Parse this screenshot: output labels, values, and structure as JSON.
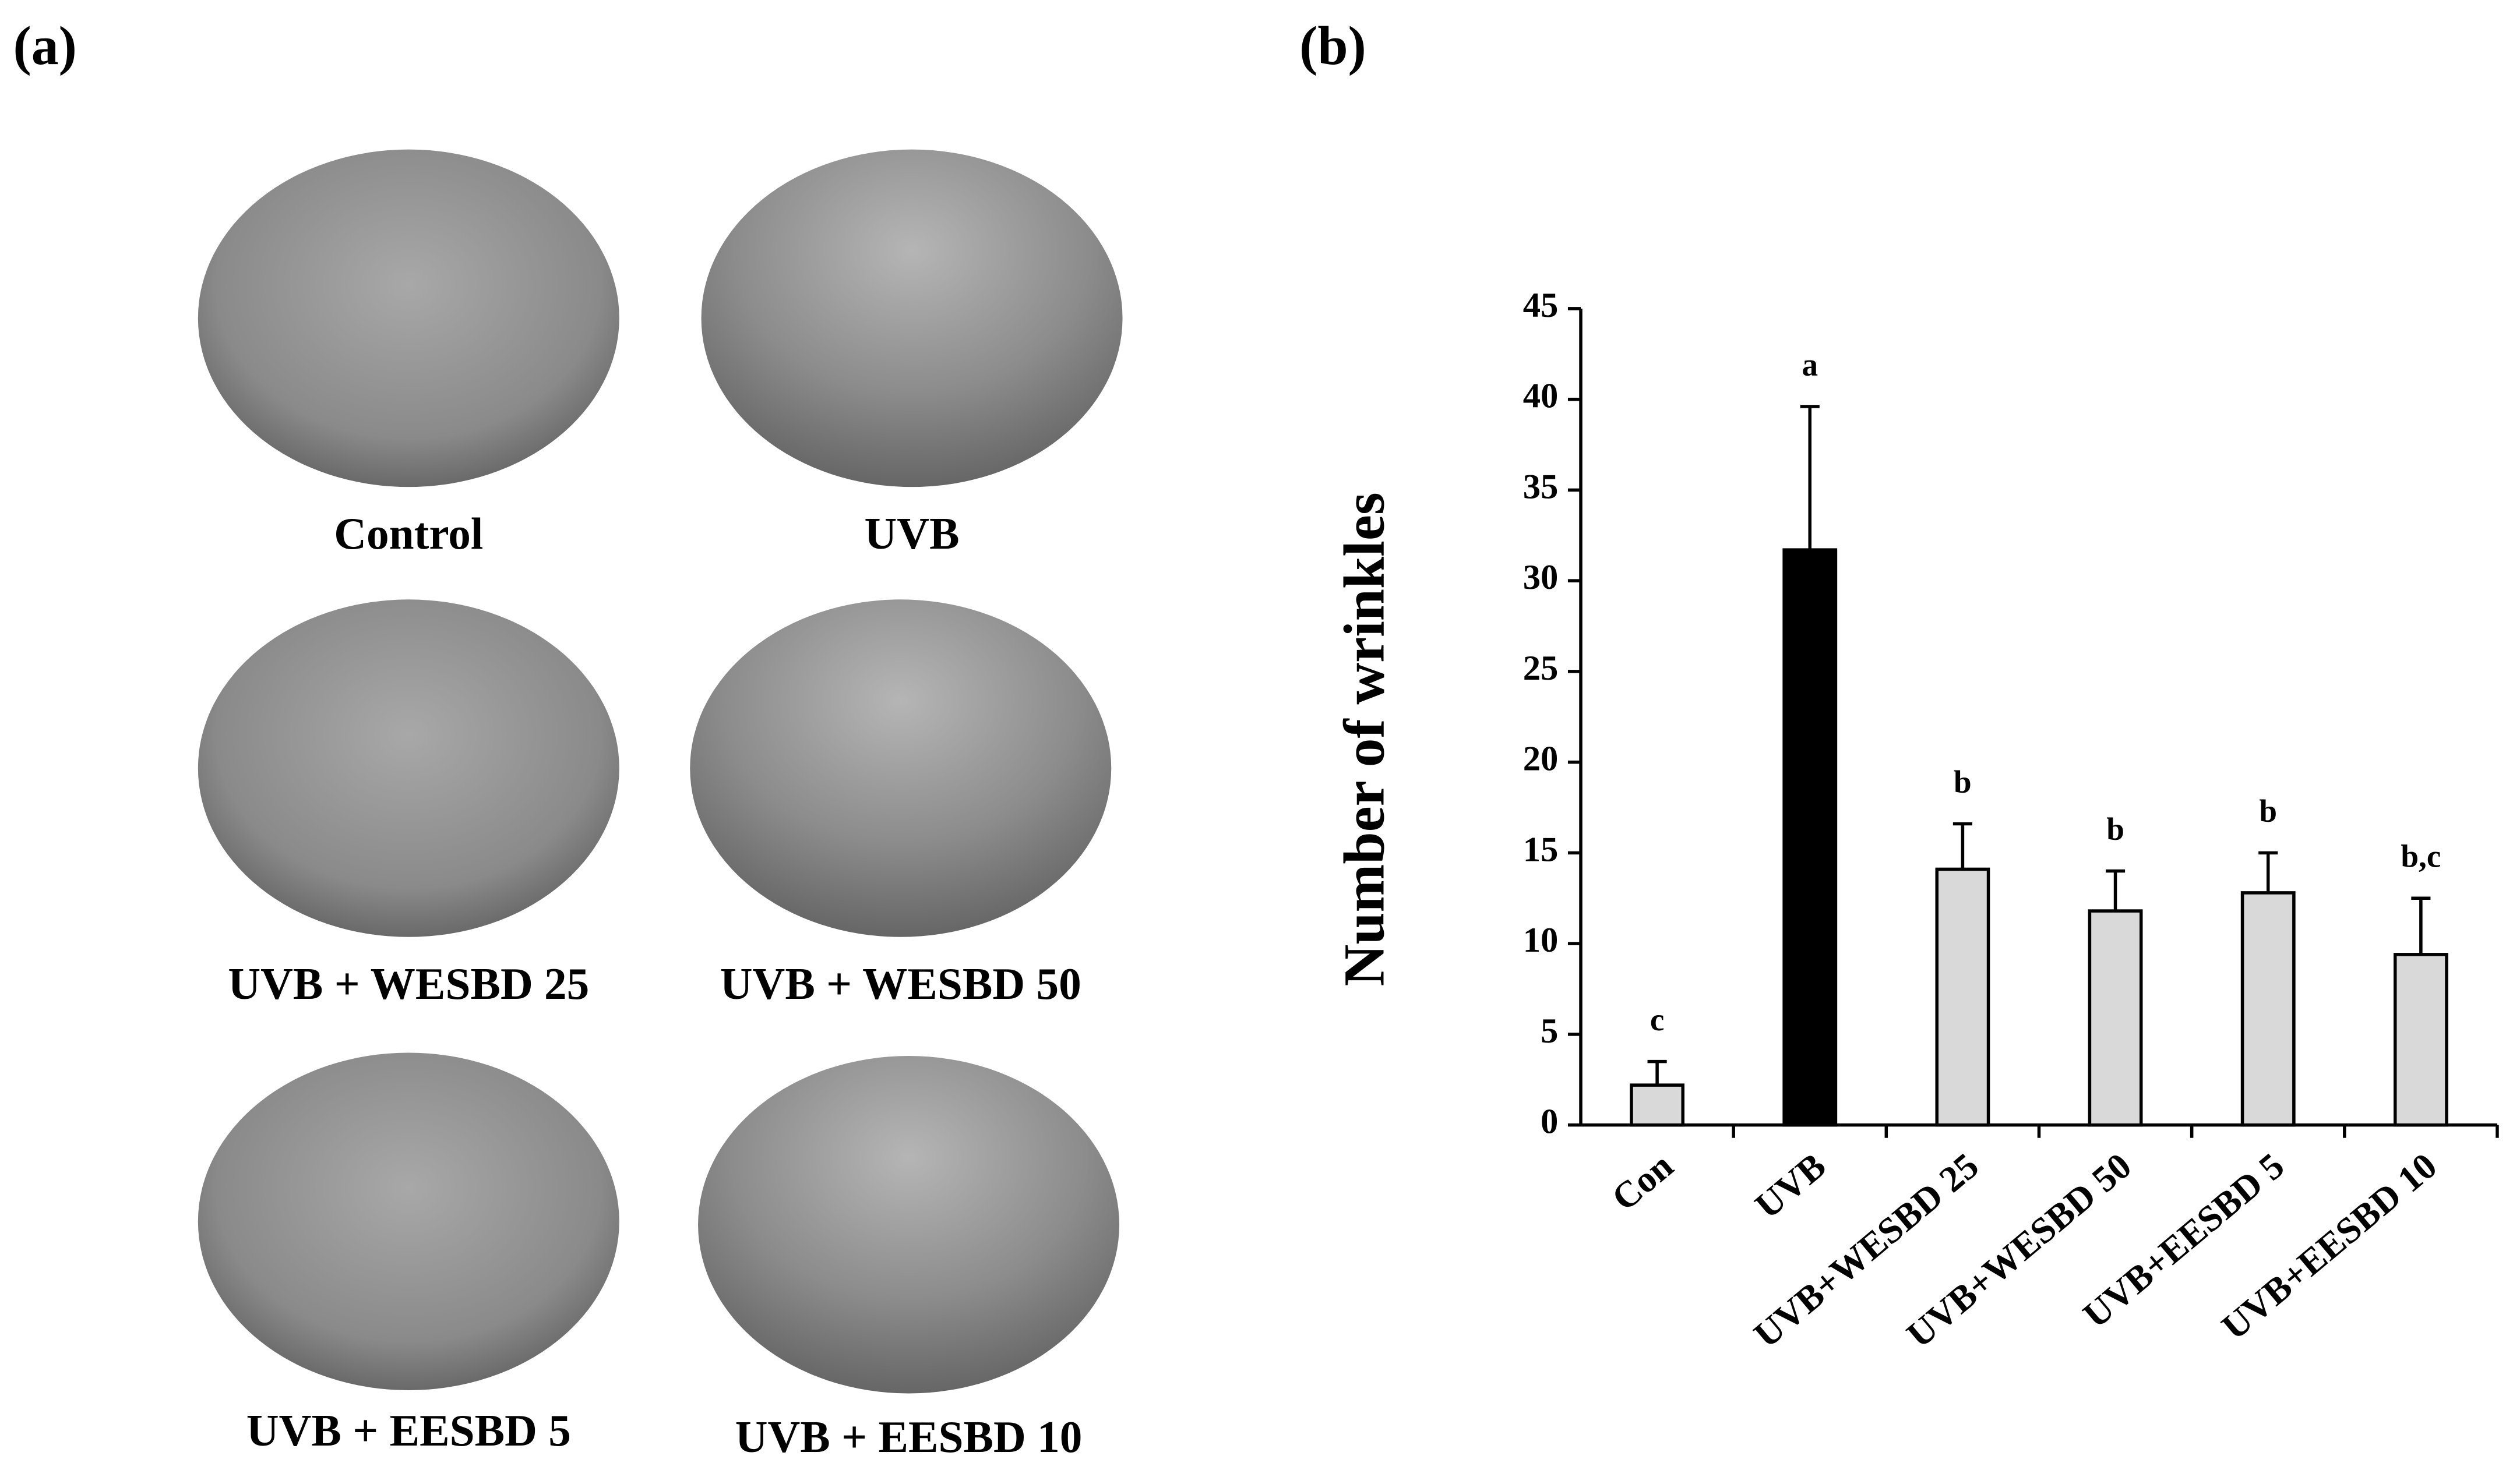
{
  "panel_a": {
    "label": "(a)",
    "images": [
      {
        "caption": "Control"
      },
      {
        "caption": "UVB"
      },
      {
        "caption": "UVB + WESBD 25"
      },
      {
        "caption": "UVB + WESBD 50"
      },
      {
        "caption": "UVB + EESBD 5"
      },
      {
        "caption": "UVB + EESBD 10"
      }
    ]
  },
  "chart_data": {
    "type": "bar",
    "panel_label": "(b)",
    "ylabel": "Number of wrinkles",
    "categories": [
      "Con",
      "UVB",
      "UVB+WESBD 25",
      "UVB+WESBD 50",
      "UVB+EESBD 5",
      "UVB+EESBD 10"
    ],
    "values": [
      2.2,
      31.7,
      14.1,
      11.8,
      12.8,
      9.4
    ],
    "errors": [
      1.3,
      7.9,
      2.5,
      2.2,
      2.2,
      3.1
    ],
    "annotations": [
      "c",
      "a",
      "b",
      "b",
      "b",
      "b,c"
    ],
    "colors": [
      "#d9d9d9",
      "#000000",
      "#d9d9d9",
      "#d9d9d9",
      "#d9d9d9",
      "#d9d9d9"
    ],
    "ylim": [
      0,
      45
    ],
    "yticks": [
      0,
      5,
      10,
      15,
      20,
      25,
      30,
      35,
      40,
      45
    ]
  }
}
